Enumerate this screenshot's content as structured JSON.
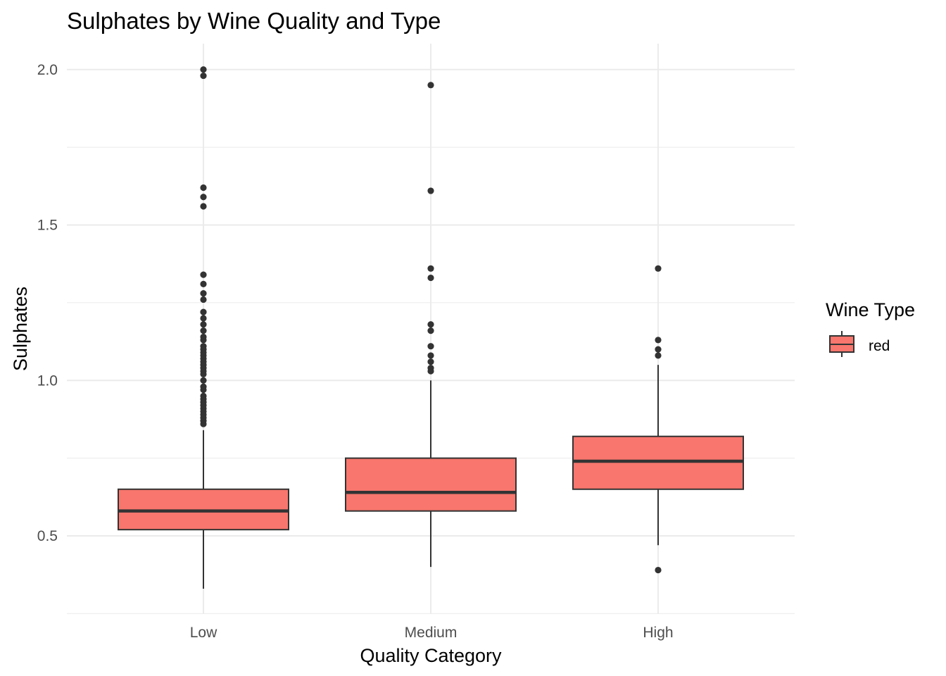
{
  "chart_data": {
    "type": "box",
    "title": "Sulphates by Wine Quality and Type",
    "xlabel": "Quality Category",
    "ylabel": "Sulphates",
    "categories": [
      "Low",
      "Medium",
      "High"
    ],
    "ylim": [
      0.25,
      2.08
    ],
    "yticks": [
      0.5,
      1.0,
      1.5,
      2.0
    ],
    "ytick_labels": [
      "0.5",
      "1.0",
      "1.5",
      "2.0"
    ],
    "grid": true,
    "legend": {
      "title": "Wine Type",
      "placement": "right",
      "entries": [
        "red"
      ]
    },
    "fill_color": "#F8766D",
    "line_color": "#333333",
    "series": [
      {
        "name": "red",
        "boxes": [
          {
            "category": "Low",
            "q1": 0.52,
            "median": 0.58,
            "q3": 0.65,
            "whisker_low": 0.33,
            "whisker_high": 0.84,
            "outliers": [
              2.0,
              1.98,
              1.62,
              1.59,
              1.56,
              1.34,
              1.31,
              1.28,
              1.26,
              1.22,
              1.2,
              1.18,
              1.16,
              1.14,
              1.13,
              1.11,
              1.1,
              1.09,
              1.08,
              1.07,
              1.06,
              1.05,
              1.04,
              1.03,
              1.02,
              1.0,
              0.98,
              0.97,
              0.95,
              0.94,
              0.93,
              0.92,
              0.91,
              0.9,
              0.89,
              0.88,
              0.87,
              0.86
            ]
          },
          {
            "category": "Medium",
            "q1": 0.58,
            "median": 0.64,
            "q3": 0.75,
            "whisker_low": 0.4,
            "whisker_high": 1.0,
            "outliers": [
              1.95,
              1.61,
              1.36,
              1.33,
              1.18,
              1.16,
              1.11,
              1.08,
              1.06,
              1.04,
              1.03
            ]
          },
          {
            "category": "High",
            "q1": 0.65,
            "median": 0.74,
            "q3": 0.82,
            "whisker_low": 0.47,
            "whisker_high": 1.05,
            "outliers": [
              1.36,
              1.13,
              1.1,
              1.08,
              0.39
            ]
          }
        ]
      }
    ]
  }
}
